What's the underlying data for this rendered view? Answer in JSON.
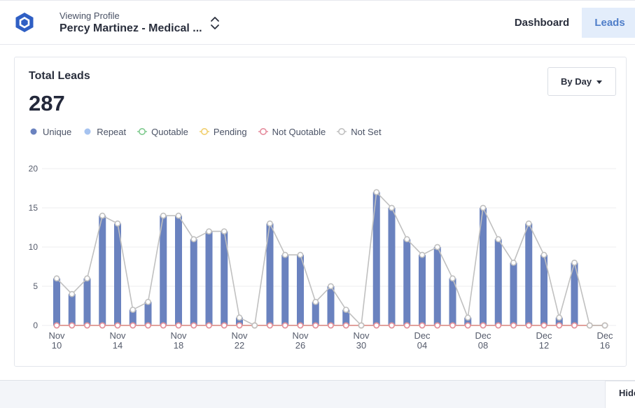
{
  "header": {
    "profile_caption": "Viewing Profile",
    "profile_name": "Percy Martinez - Medical ...",
    "logo_icon": "hexagon-logo-icon",
    "switch_icon": "chevron-up-down-icon",
    "brand_color": "#2f5fc4"
  },
  "nav": {
    "dashboard_label": "Dashboard",
    "leads_label": "Leads",
    "active": "Leads",
    "active_color": "#4f7ec9"
  },
  "card": {
    "title": "Total Leads",
    "total": "287",
    "granularity_label": "By Day",
    "granularity_icon": "caret-down-icon"
  },
  "legend": [
    {
      "label": "Unique",
      "style": "filled",
      "color": "#6a82bf"
    },
    {
      "label": "Repeat",
      "style": "filled",
      "color": "#a6c3f0"
    },
    {
      "label": "Quotable",
      "style": "hollow",
      "color": "#7fca8e"
    },
    {
      "label": "Pending",
      "style": "hollow",
      "color": "#f1cf6e"
    },
    {
      "label": "Not Quotable",
      "style": "hollow",
      "color": "#e58c9d"
    },
    {
      "label": "Not Set",
      "style": "hollow",
      "color": "#c0c0c0"
    }
  ],
  "chart_data": {
    "type": "bar",
    "ylim": [
      0,
      20
    ],
    "y_ticks": [
      "0",
      "5",
      "10",
      "15",
      "20"
    ],
    "grid": true,
    "legend_position": "top-left",
    "categories": [
      "Nov 10",
      "Nov 11",
      "Nov 12",
      "Nov 13",
      "Nov 14",
      "Nov 15",
      "Nov 16",
      "Nov 17",
      "Nov 18",
      "Nov 19",
      "Nov 20",
      "Nov 21",
      "Nov 22",
      "Nov 23",
      "Nov 24",
      "Nov 25",
      "Nov 26",
      "Nov 27",
      "Nov 28",
      "Nov 29",
      "Nov 30",
      "Dec 01",
      "Dec 02",
      "Dec 03",
      "Dec 04",
      "Dec 05",
      "Dec 06",
      "Dec 07",
      "Dec 08",
      "Dec 09",
      "Dec 10",
      "Dec 11",
      "Dec 12",
      "Dec 13",
      "Dec 14",
      "Dec 15",
      "Dec 16"
    ],
    "x_tick_labels": [
      {
        "index": 0,
        "month": "Nov",
        "day": "10"
      },
      {
        "index": 4,
        "month": "Nov",
        "day": "14"
      },
      {
        "index": 8,
        "month": "Nov",
        "day": "18"
      },
      {
        "index": 12,
        "month": "Nov",
        "day": "22"
      },
      {
        "index": 16,
        "month": "Nov",
        "day": "26"
      },
      {
        "index": 20,
        "month": "Nov",
        "day": "30"
      },
      {
        "index": 24,
        "month": "Dec",
        "day": "04"
      },
      {
        "index": 28,
        "month": "Dec",
        "day": "08"
      },
      {
        "index": 32,
        "month": "Dec",
        "day": "12"
      },
      {
        "index": 36,
        "month": "Dec",
        "day": "16"
      }
    ],
    "series": [
      {
        "name": "Unique",
        "kind": "bar",
        "color": "#6a82bf",
        "values": [
          6,
          4,
          6,
          14,
          13,
          2,
          3,
          14,
          14,
          11,
          12,
          12,
          1,
          0,
          13,
          9,
          9,
          3,
          5,
          2,
          0,
          17,
          15,
          11,
          9,
          10,
          6,
          1,
          15,
          11,
          8,
          13,
          9,
          1,
          8,
          0,
          0
        ]
      },
      {
        "name": "Repeat",
        "kind": "bar",
        "color": "#a6c3f0",
        "values": [
          0,
          0,
          0,
          0,
          0,
          0,
          0,
          0,
          0,
          0,
          0,
          0,
          0,
          0,
          0,
          0,
          0,
          0,
          0,
          0,
          0,
          0,
          0,
          0,
          0,
          0,
          0,
          0,
          0,
          0,
          0,
          0,
          0,
          0,
          0,
          0,
          0
        ]
      },
      {
        "name": "Quotable",
        "kind": "line",
        "color": "#7fca8e",
        "values": [
          0,
          0,
          0,
          0,
          0,
          0,
          0,
          0,
          0,
          0,
          0,
          0,
          0,
          0,
          0,
          0,
          0,
          0,
          0,
          0,
          0,
          0,
          0,
          0,
          0,
          0,
          0,
          0,
          0,
          0,
          0,
          0,
          0,
          0,
          0,
          0,
          0
        ]
      },
      {
        "name": "Pending",
        "kind": "line",
        "color": "#f1cf6e",
        "values": [
          0,
          0,
          0,
          0,
          0,
          0,
          0,
          0,
          0,
          0,
          0,
          0,
          0,
          0,
          0,
          0,
          0,
          0,
          0,
          0,
          0,
          0,
          0,
          0,
          0,
          0,
          0,
          0,
          0,
          0,
          0,
          0,
          0,
          0,
          0,
          0,
          0
        ]
      },
      {
        "name": "Not Quotable",
        "kind": "line",
        "color": "#e58c9d",
        "values": [
          0,
          0,
          0,
          0,
          0,
          0,
          0,
          0,
          0,
          0,
          0,
          0,
          0,
          0,
          0,
          0,
          0,
          0,
          0,
          0,
          0,
          0,
          0,
          0,
          0,
          0,
          0,
          0,
          0,
          0,
          0,
          0,
          0,
          0,
          0,
          0,
          0
        ]
      },
      {
        "name": "Not Set",
        "kind": "line",
        "color": "#c0c0c0",
        "values": [
          6,
          4,
          6,
          14,
          13,
          2,
          3,
          14,
          14,
          11,
          12,
          12,
          1,
          0,
          13,
          9,
          9,
          3,
          5,
          2,
          0,
          17,
          15,
          11,
          9,
          10,
          6,
          1,
          15,
          11,
          8,
          13,
          9,
          1,
          8,
          0,
          0
        ]
      }
    ]
  },
  "footer": {
    "hide_label": "Hide"
  }
}
